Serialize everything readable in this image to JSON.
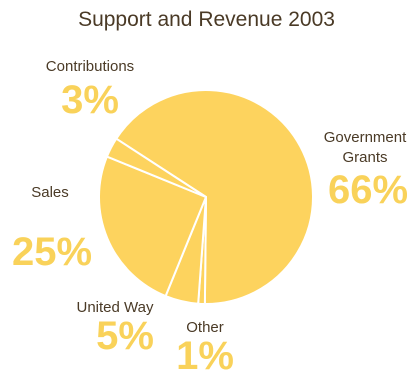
{
  "chart_data": {
    "type": "pie",
    "title": "Support and Revenue 2003",
    "slices": [
      {
        "label": "Government Grants",
        "label_lines": [
          "Government",
          "Grants"
        ],
        "percent_label": "66%",
        "value": 66
      },
      {
        "label": "Other",
        "label_lines": [
          "Other"
        ],
        "percent_label": "1%",
        "value": 1
      },
      {
        "label": "United Way",
        "label_lines": [
          "United Way"
        ],
        "percent_label": "5%",
        "value": 5
      },
      {
        "label": "Sales",
        "label_lines": [
          "Sales"
        ],
        "percent_label": "25%",
        "value": 25
      },
      {
        "label": "Contributions",
        "label_lines": [
          "Contributions"
        ],
        "percent_label": "3%",
        "value": 3
      }
    ],
    "colors": {
      "fill": "#fdd35e",
      "separator": "#ffffff",
      "label": "#4a3a26",
      "percent": "#f9d25a"
    },
    "legend": "none"
  }
}
